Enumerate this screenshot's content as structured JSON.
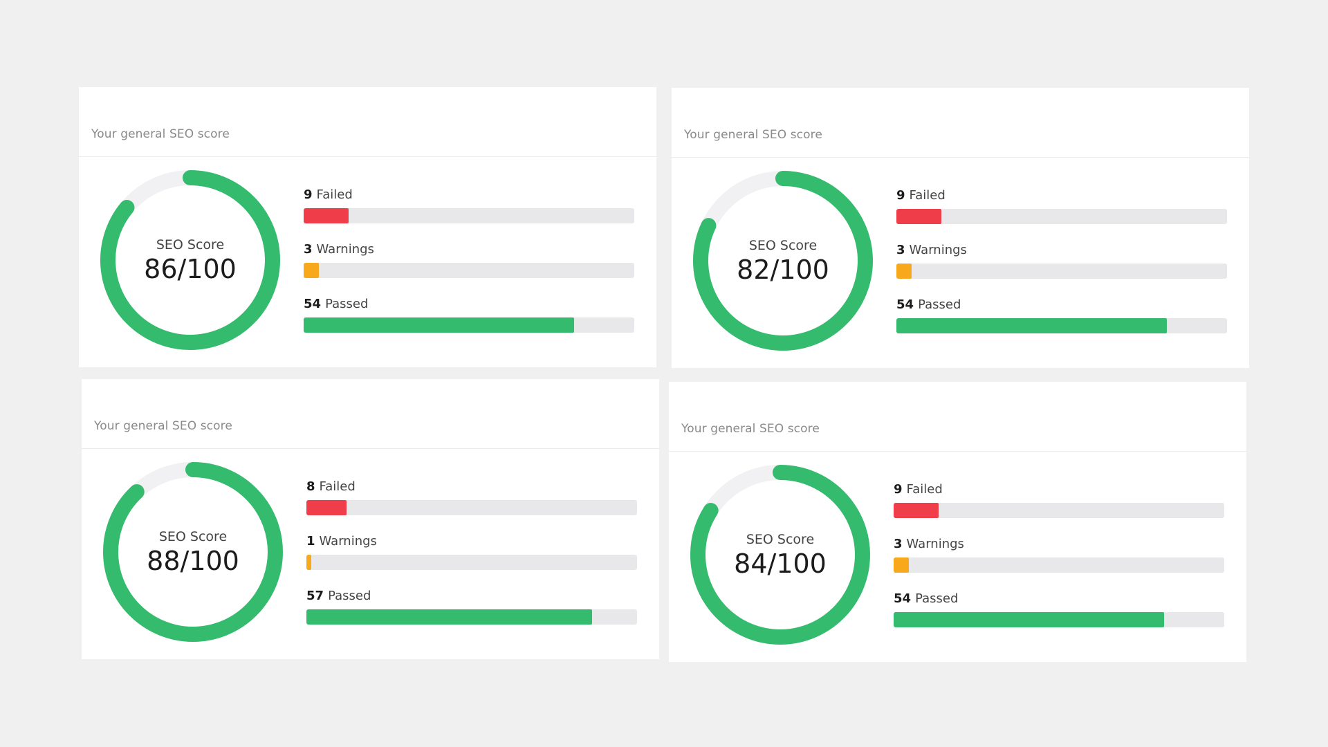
{
  "cards": [
    {
      "title": "Your general SEO score",
      "score_label": "SEO Score",
      "score_text": "86/100",
      "score": 86,
      "failed": {
        "count": "9",
        "label": "Failed",
        "fraction": 0.135
      },
      "warnings": {
        "count": "3",
        "label": "Warnings",
        "fraction": 0.045
      },
      "passed": {
        "count": "54",
        "label": "Passed",
        "fraction": 0.818
      }
    },
    {
      "title": "Your general SEO score",
      "score_label": "SEO Score",
      "score_text": "82/100",
      "score": 82,
      "failed": {
        "count": "9",
        "label": "Failed",
        "fraction": 0.135
      },
      "warnings": {
        "count": "3",
        "label": "Warnings",
        "fraction": 0.045
      },
      "passed": {
        "count": "54",
        "label": "Passed",
        "fraction": 0.818
      }
    },
    {
      "title": "Your general SEO score",
      "score_label": "SEO Score",
      "score_text": "88/100",
      "score": 88,
      "failed": {
        "count": "8",
        "label": "Failed",
        "fraction": 0.121
      },
      "warnings": {
        "count": "1",
        "label": "Warnings",
        "fraction": 0.015
      },
      "passed": {
        "count": "57",
        "label": "Passed",
        "fraction": 0.864
      }
    },
    {
      "title": "Your general SEO score",
      "score_label": "SEO Score",
      "score_text": "84/100",
      "score": 84,
      "failed": {
        "count": "9",
        "label": "Failed",
        "fraction": 0.135
      },
      "warnings": {
        "count": "3",
        "label": "Warnings",
        "fraction": 0.045
      },
      "passed": {
        "count": "54",
        "label": "Passed",
        "fraction": 0.818
      }
    }
  ],
  "colors": {
    "failed": "#ef3e4a",
    "warnings": "#f7a81b",
    "passed": "#35bb6e",
    "gauge_track": "#f1f1f3"
  }
}
